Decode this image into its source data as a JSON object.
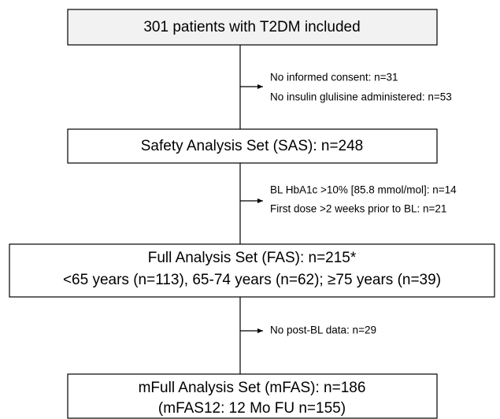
{
  "nodes": [
    {
      "lines": [
        "301 patients with T2DM included"
      ]
    },
    {
      "lines": [
        "Safety Analysis Set (SAS): n=248"
      ]
    },
    {
      "lines": [
        "Full Analysis Set (FAS): n=215*",
        "<65 years (n=113), 65-74 years (n=62); ≥75 years (n=39)"
      ]
    },
    {
      "lines": [
        "mFull Analysis Set (mFAS): n=186",
        "(mFAS12: 12 Mo FU n=155)"
      ]
    }
  ],
  "exclusions": [
    {
      "lines": [
        "No informed consent: n=31",
        "No insulin glulisine administered: n=53"
      ]
    },
    {
      "lines": [
        "BL HbA1c >10% [85.8 mmol/mol]: n=14",
        "First dose >2 weeks prior to BL: n=21"
      ]
    },
    {
      "lines": [
        "No post-BL data: n=29"
      ]
    }
  ]
}
